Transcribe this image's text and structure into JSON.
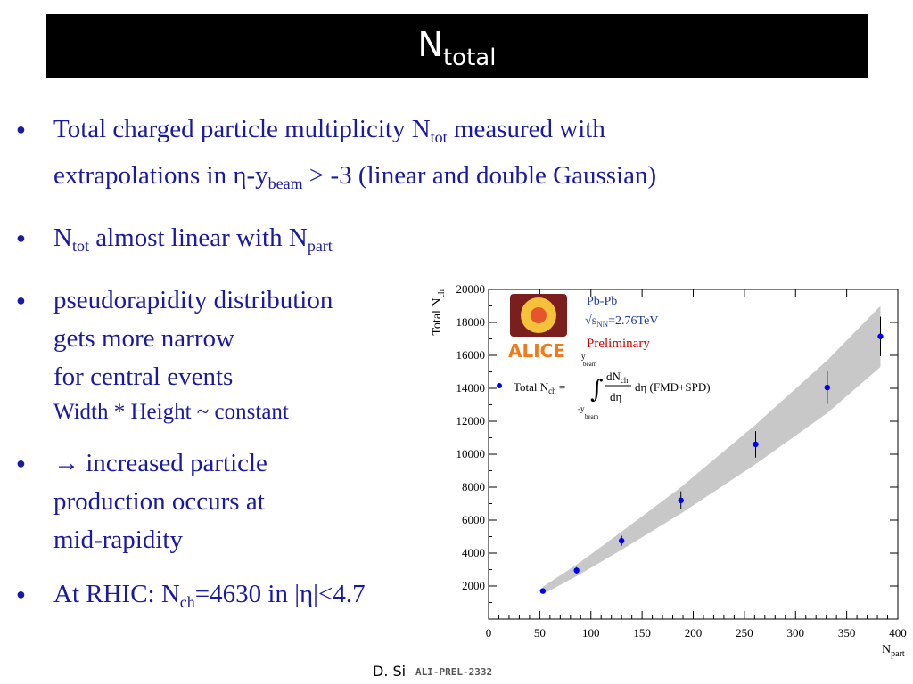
{
  "slide": {
    "title_main": "N",
    "title_sub": "total",
    "footer": "D. Si",
    "prel_label": "ALI-PREL-2332"
  },
  "bullets": {
    "b1": {
      "part1": "Total charged particle multiplicity N",
      "sub1": "tot",
      "part2": " measured with",
      "part3": "extrapolations in η-y",
      "sub2": "beam",
      "part4": " > -3 (linear and double Gaussian)"
    },
    "b2": {
      "part1": " N",
      "sub1": "tot",
      "part2": " almost linear with N",
      "sub2": "part"
    },
    "b3": {
      "line1": "pseudorapidity distribution",
      "line2": "gets more narrow",
      "line3": "for central events",
      "line4": "Width * Height ~ constant"
    },
    "b4": {
      "line1": "→ increased particle",
      "line2": "production occurs at",
      "line3": "mid-rapidity"
    },
    "b5": {
      "part1": "At RHIC: N",
      "sub1": "ch",
      "part2": "=4630 in |η|<4.7"
    }
  },
  "chart_data": {
    "type": "scatter",
    "xlabel_main": "N",
    "xlabel_sub": "part",
    "ylabel_main": "Total N",
    "ylabel_sub": "ch",
    "xlim": [
      0,
      400
    ],
    "ylim": [
      0,
      20000
    ],
    "xticks": [
      0,
      50,
      100,
      150,
      200,
      250,
      300,
      350,
      400
    ],
    "yticks": [
      2000,
      4000,
      6000,
      8000,
      10000,
      12000,
      14000,
      16000,
      18000,
      20000
    ],
    "points": [
      {
        "x": 53,
        "y": 1700,
        "err": 120
      },
      {
        "x": 86,
        "y": 2950,
        "err": 200
      },
      {
        "x": 130,
        "y": 4750,
        "err": 300
      },
      {
        "x": 188,
        "y": 7200,
        "err": 550
      },
      {
        "x": 261,
        "y": 10600,
        "err": 800
      },
      {
        "x": 331,
        "y": 14050,
        "err": 1000
      },
      {
        "x": 383,
        "y": 17150,
        "err": 1200
      }
    ],
    "band": [
      {
        "x": 53,
        "lo": 1500,
        "hi": 1950
      },
      {
        "x": 86,
        "lo": 2600,
        "hi": 3300
      },
      {
        "x": 130,
        "lo": 4200,
        "hi": 5300
      },
      {
        "x": 188,
        "lo": 6400,
        "hi": 8000
      },
      {
        "x": 261,
        "lo": 9400,
        "hi": 11800
      },
      {
        "x": 331,
        "lo": 12500,
        "hi": 15700
      },
      {
        "x": 383,
        "lo": 15300,
        "hi": 19000
      }
    ],
    "legend_formula_label": "Total N",
    "legend_formula_sub": "ch",
    "legend_formula_tail": "dη (FMD+SPD)",
    "legend_frac_num": "dN",
    "legend_frac_num_sub": "ch",
    "legend_frac_den": "dη",
    "legend_lim_top": "y",
    "legend_lim_top_sub": "beam",
    "legend_lim_bot": "-y",
    "legend_lim_bot_sub": "beam",
    "annotation_system": "Pb-Pb",
    "annotation_energy_s": "s",
    "annotation_energy_sub": "NN",
    "annotation_energy_val": "=2.76TeV",
    "annotation_status": "Preliminary",
    "logo_text": "ALICE",
    "colors": {
      "point": "#0000ee",
      "band": "#c8c8c8",
      "annotation_blue": "#1a3a9a",
      "annotation_red": "#cc0000",
      "logo_orange": "#f07a18"
    }
  },
  "theme": {
    "text_color": "#1a1aa0",
    "title_bg": "#000000"
  }
}
